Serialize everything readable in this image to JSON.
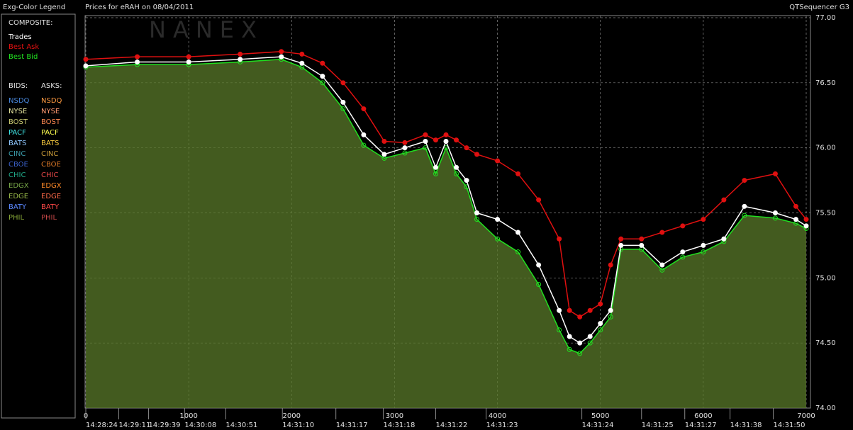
{
  "header": {
    "left": "Exg-Color Legend",
    "title": "Prices for  eRAH  on  08/04/2011",
    "right": "QTSequencer G3",
    "watermark": "NANEX"
  },
  "legend": {
    "composite_label": "COMPOSITE:",
    "bids_label": "BIDS:",
    "asks_label": "ASKS:",
    "bids": [
      {
        "name": "NSDQ",
        "color": "#4a8ae0"
      },
      {
        "name": "NYSE",
        "color": "#e8e8a0"
      },
      {
        "name": "BOST",
        "color": "#c8c870"
      },
      {
        "name": "PACF",
        "color": "#40e8e8"
      },
      {
        "name": "BATS",
        "color": "#90c8ff"
      },
      {
        "name": "CINC",
        "color": "#3a9aa8"
      },
      {
        "name": "CBOE",
        "color": "#3a60c8"
      },
      {
        "name": "CHIC",
        "color": "#20a888"
      },
      {
        "name": "EDGX",
        "color": "#78a848"
      },
      {
        "name": "EDGE",
        "color": "#98b848"
      },
      {
        "name": "BATY",
        "color": "#5a88ff"
      },
      {
        "name": "PHIL",
        "color": "#88a838"
      }
    ],
    "asks": [
      {
        "name": "NSDQ",
        "color": "#ff9a40"
      },
      {
        "name": "NYSE",
        "color": "#ff9a70"
      },
      {
        "name": "BOST",
        "color": "#ff8850"
      },
      {
        "name": "PACF",
        "color": "#ffff50"
      },
      {
        "name": "BATS",
        "color": "#ffd040"
      },
      {
        "name": "CINC",
        "color": "#c89a38"
      },
      {
        "name": "CBOE",
        "color": "#e07a28"
      },
      {
        "name": "CHIC",
        "color": "#e84848"
      },
      {
        "name": "EDGX",
        "color": "#ff8a28"
      },
      {
        "name": "EDGE",
        "color": "#ff6a48"
      },
      {
        "name": "BATY",
        "color": "#ff4848"
      },
      {
        "name": "PHIL",
        "color": "#c84848"
      }
    ]
  },
  "chart_data": {
    "type": "line",
    "x": [
      0,
      500,
      1000,
      1500,
      1900,
      2100,
      2300,
      2500,
      2700,
      2900,
      3100,
      3300,
      3400,
      3500,
      3600,
      3700,
      3800,
      4000,
      4200,
      4400,
      4600,
      4700,
      4800,
      4900,
      5000,
      5100,
      5200,
      5400,
      5600,
      5800,
      6000,
      6200,
      6400,
      6700,
      6900,
      7000
    ],
    "series": [
      {
        "name": "Best Bid",
        "color": "#20e020",
        "values": [
          76.62,
          76.64,
          76.64,
          76.66,
          76.68,
          76.62,
          76.5,
          76.3,
          76.02,
          75.92,
          75.96,
          76.0,
          75.8,
          76.0,
          75.8,
          75.7,
          75.45,
          75.3,
          75.2,
          74.95,
          74.6,
          74.45,
          74.42,
          74.5,
          74.6,
          74.7,
          75.22,
          75.22,
          75.06,
          75.16,
          75.2,
          75.28,
          75.48,
          75.46,
          75.42,
          75.38
        ]
      },
      {
        "name": "Best Ask",
        "color": "#e01010",
        "values": [
          76.68,
          76.7,
          76.7,
          76.72,
          76.74,
          76.72,
          76.65,
          76.5,
          76.3,
          76.05,
          76.04,
          76.1,
          76.06,
          76.1,
          76.06,
          76.0,
          75.95,
          75.9,
          75.8,
          75.6,
          75.3,
          74.75,
          74.7,
          74.75,
          74.8,
          75.1,
          75.3,
          75.3,
          75.35,
          75.4,
          75.45,
          75.6,
          75.75,
          75.8,
          75.55,
          75.45
        ]
      },
      {
        "name": "Trades",
        "color": "#ffffff",
        "values": [
          76.63,
          76.66,
          76.66,
          76.68,
          76.7,
          76.65,
          76.55,
          76.35,
          76.1,
          75.95,
          76.0,
          76.05,
          75.85,
          76.05,
          75.85,
          75.75,
          75.5,
          75.45,
          75.35,
          75.1,
          74.75,
          74.55,
          74.5,
          74.55,
          74.65,
          74.75,
          75.25,
          75.25,
          75.1,
          75.2,
          75.25,
          75.3,
          75.55,
          75.5,
          75.45,
          75.4
        ]
      }
    ],
    "xlim": [
      0,
      7000
    ],
    "xticks": [
      0,
      1000,
      2000,
      3000,
      4000,
      5000,
      6000,
      7000
    ],
    "time_ticks": [
      {
        "value": 0,
        "label": "14:28:24"
      },
      {
        "value": 320,
        "label": "14:29:11"
      },
      {
        "value": 610,
        "label": "14:29:39"
      },
      {
        "value": 960,
        "label": "14:30:08"
      },
      {
        "value": 1360,
        "label": "14:30:51"
      },
      {
        "value": 1910,
        "label": "14:31:10"
      },
      {
        "value": 2430,
        "label": "14:31:17"
      },
      {
        "value": 2890,
        "label": "14:31:18"
      },
      {
        "value": 3400,
        "label": "14:31:22"
      },
      {
        "value": 3890,
        "label": "14:31:23"
      },
      {
        "value": 4820,
        "label": "14:31:24"
      },
      {
        "value": 5400,
        "label": "14:31:25"
      },
      {
        "value": 5820,
        "label": "14:31:27"
      },
      {
        "value": 6260,
        "label": "14:31:38"
      },
      {
        "value": 6680,
        "label": "14:31:50"
      }
    ],
    "ylim": [
      74,
      77
    ],
    "yticks": [
      {
        "value": 74,
        "label": "74.00"
      },
      {
        "value": 74.5,
        "label": "74.50"
      },
      {
        "value": 75,
        "label": "75.00"
      },
      {
        "value": 75.5,
        "label": "75.50"
      },
      {
        "value": 76,
        "label": "76.00"
      },
      {
        "value": 76.5,
        "label": "76.50"
      },
      {
        "value": 77,
        "label": "77.00"
      }
    ],
    "grid": true
  }
}
